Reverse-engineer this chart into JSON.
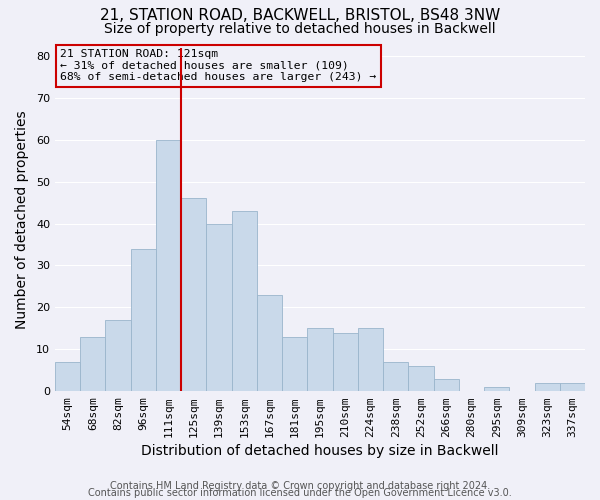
{
  "title1": "21, STATION ROAD, BACKWELL, BRISTOL, BS48 3NW",
  "title2": "Size of property relative to detached houses in Backwell",
  "xlabel": "Distribution of detached houses by size in Backwell",
  "ylabel": "Number of detached properties",
  "footer1": "Contains HM Land Registry data © Crown copyright and database right 2024.",
  "footer2": "Contains public sector information licensed under the Open Government Licence v3.0.",
  "categories": [
    "54sqm",
    "68sqm",
    "82sqm",
    "96sqm",
    "111sqm",
    "125sqm",
    "139sqm",
    "153sqm",
    "167sqm",
    "181sqm",
    "195sqm",
    "210sqm",
    "224sqm",
    "238sqm",
    "252sqm",
    "266sqm",
    "280sqm",
    "295sqm",
    "309sqm",
    "323sqm",
    "337sqm"
  ],
  "values": [
    7,
    13,
    17,
    34,
    60,
    46,
    40,
    43,
    23,
    13,
    15,
    14,
    15,
    7,
    6,
    3,
    0,
    1,
    0,
    2,
    2
  ],
  "bar_color": "#c9d9ea",
  "bar_edge_color": "#9ab5cc",
  "vline_x": 4.5,
  "vline_color": "#cc0000",
  "annotation_text": "21 STATION ROAD: 121sqm\n← 31% of detached houses are smaller (109)\n68% of semi-detached houses are larger (243) →",
  "annotation_box_color": "#cc0000",
  "annotation_text_color": "black",
  "ylim": [
    0,
    82
  ],
  "yticks": [
    0,
    10,
    20,
    30,
    40,
    50,
    60,
    70,
    80
  ],
  "bg_color": "#f0f0f8",
  "grid_color": "white",
  "title_fontsize": 11,
  "subtitle_fontsize": 10,
  "axis_label_fontsize": 10,
  "tick_fontsize": 8,
  "footer_fontsize": 7
}
